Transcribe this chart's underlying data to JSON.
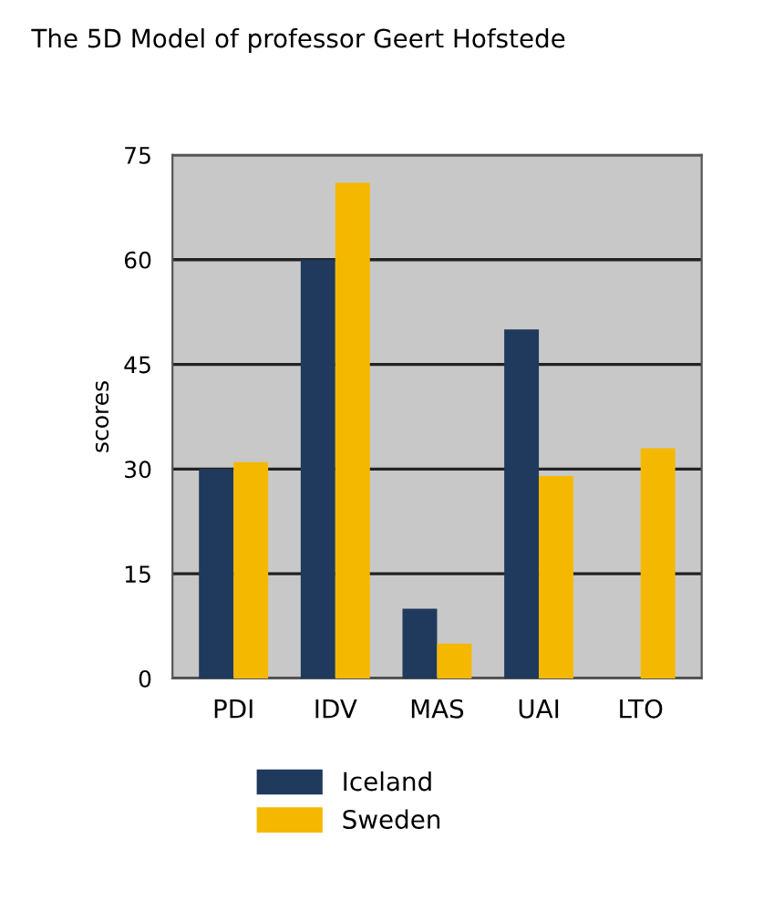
{
  "chart_data": {
    "type": "bar",
    "title": "The 5D Model of professor Geert Hofstede",
    "ylabel": "scores",
    "categories": [
      "PDI",
      "IDV",
      "MAS",
      "UAI",
      "LTO"
    ],
    "series": [
      {
        "name": "Iceland",
        "color": "#1f3a5c",
        "values": [
          30,
          60,
          10,
          50,
          null
        ]
      },
      {
        "name": "Sweden",
        "color": "#f5b800",
        "values": [
          31,
          71,
          5,
          29,
          33
        ]
      }
    ],
    "ylim": [
      0,
      75
    ],
    "yticks": [
      0,
      15,
      30,
      45,
      60,
      75
    ],
    "grid": "y",
    "legend": "bottom"
  }
}
